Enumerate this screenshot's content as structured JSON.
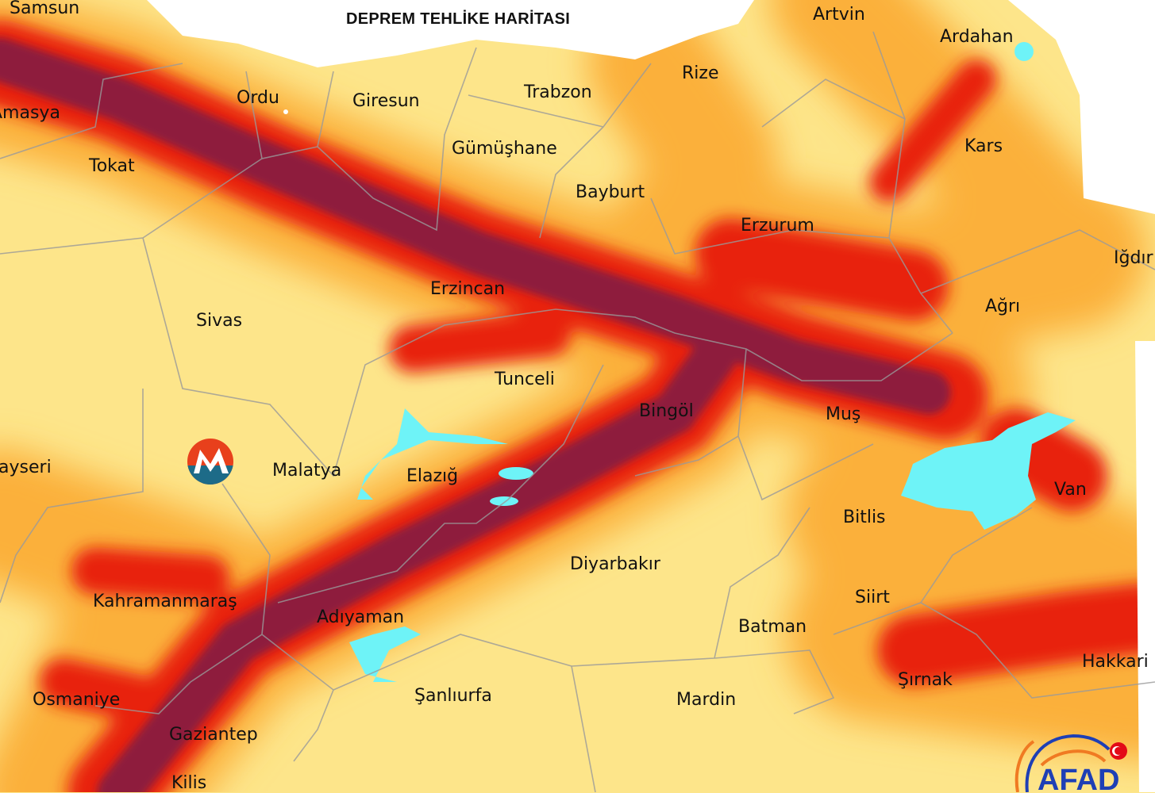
{
  "title": "DEPREM TEHLİKE HARİTASI",
  "provinces": [
    "Samsun",
    "Amasya",
    "Tokat",
    "Ordu",
    "Giresun",
    "Trabzon",
    "Gümüşhane",
    "Rize",
    "Artvin",
    "Ardahan",
    "Kars",
    "Bayburt",
    "Erzurum",
    "Iğdır",
    "Ağrı",
    "Erzincan",
    "Sivas",
    "Tunceli",
    "Bingöl",
    "Muş",
    "Kayseri",
    "Malatya",
    "Elazığ",
    "Van",
    "Bitlis",
    "Diyarbakır",
    "Siirt",
    "Kahramanmaraş",
    "Adıyaman",
    "Batman",
    "Hakkari",
    "Şırnak",
    "Osmaniye",
    "Şanlıurfa",
    "Mardin",
    "Gaziantep",
    "Kilis"
  ],
  "hazard_colors": {
    "low": "#fde58a",
    "moderate": "#fbb03b",
    "high": "#e8200e",
    "very_high": "#8e1f3c",
    "water": "#6ef3f7"
  },
  "logos": {
    "agency": "AFAD",
    "watermark": "M"
  }
}
